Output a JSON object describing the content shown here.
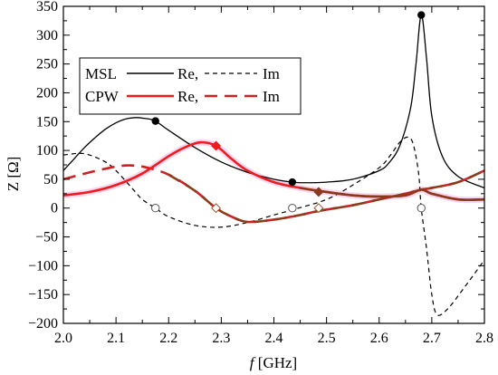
{
  "chart_data": {
    "type": "line",
    "xlabel_italic": "f",
    "xlabel_rest": " [GHz]",
    "ylabel": "Z [Ω]",
    "xlim": [
      2.0,
      2.8
    ],
    "ylim": [
      -200,
      350
    ],
    "x_ticks": [
      2.0,
      2.1,
      2.2,
      2.3,
      2.4,
      2.5,
      2.6,
      2.7,
      2.8
    ],
    "x_tick_labels": [
      "2.0",
      "2.1",
      "2.2",
      "2.3",
      "2.4",
      "2.5",
      "2.6",
      "2.7",
      "2.8"
    ],
    "y_ticks": [
      -200,
      -150,
      -100,
      -50,
      0,
      50,
      100,
      150,
      200,
      250,
      300,
      350
    ],
    "y_tick_labels": [
      "−200",
      "−150",
      "−100",
      "−50",
      "0",
      "50",
      "100",
      "150",
      "200",
      "250",
      "300",
      "350"
    ],
    "grid": false,
    "legend_placement": "top-left",
    "legend": {
      "rows": [
        {
          "name": "MSL",
          "re": "Re,",
          "im": "Im"
        },
        {
          "name": "CPW",
          "re": "Re,",
          "im": "Im"
        }
      ]
    },
    "colors": {
      "msl": "#000000",
      "cpw_re": "#ee1c1c",
      "cpw_im": "#cc2222",
      "brown": "#8b3a1a",
      "pink_band": "#f4b6e6"
    },
    "series": [
      {
        "name": "MSL Re",
        "x": [
          2.0,
          2.02,
          2.04,
          2.06,
          2.08,
          2.1,
          2.12,
          2.14,
          2.15,
          2.16,
          2.175,
          2.2,
          2.25,
          2.3,
          2.35,
          2.4,
          2.435,
          2.46,
          2.5,
          2.55,
          2.6,
          2.62,
          2.64,
          2.66,
          2.67,
          2.68,
          2.69,
          2.7,
          2.72,
          2.75,
          2.8
        ],
        "y": [
          65,
          85,
          105,
          122,
          137,
          148,
          155,
          157,
          156,
          155,
          151,
          135,
          105,
          80,
          62,
          50,
          45,
          44,
          45,
          50,
          65,
          80,
          110,
          175,
          250,
          335,
          260,
          160,
          90,
          55,
          35
        ]
      },
      {
        "name": "MSL Im",
        "x": [
          2.0,
          2.03,
          2.05,
          2.08,
          2.1,
          2.13,
          2.15,
          2.175,
          2.2,
          2.25,
          2.3,
          2.35,
          2.4,
          2.435,
          2.5,
          2.55,
          2.6,
          2.62,
          2.64,
          2.655,
          2.665,
          2.675,
          2.68,
          2.69,
          2.7,
          2.71,
          2.73,
          2.76,
          2.8
        ],
        "y": [
          92,
          95,
          92,
          80,
          65,
          35,
          15,
          0,
          -15,
          -30,
          -33,
          -25,
          -12,
          -3,
          15,
          40,
          70,
          90,
          115,
          123,
          110,
          60,
          0,
          -70,
          -150,
          -185,
          -175,
          -140,
          -90
        ]
      },
      {
        "name": "CPW Re",
        "x": [
          2.0,
          2.05,
          2.1,
          2.15,
          2.2,
          2.23,
          2.26,
          2.29,
          2.32,
          2.35,
          2.4,
          2.45,
          2.485,
          2.55,
          2.6,
          2.65,
          2.68,
          2.7,
          2.75,
          2.8
        ],
        "y": [
          22,
          28,
          40,
          60,
          90,
          105,
          114,
          108,
          85,
          65,
          45,
          35,
          30,
          22,
          20,
          22,
          32,
          25,
          15,
          15
        ]
      },
      {
        "name": "CPW Im",
        "x": [
          2.0,
          2.05,
          2.1,
          2.13,
          2.16,
          2.2,
          2.25,
          2.29,
          2.32,
          2.35,
          2.4,
          2.45,
          2.485,
          2.55,
          2.6,
          2.65,
          2.68,
          2.7,
          2.75,
          2.8
        ],
        "y": [
          50,
          62,
          72,
          74,
          70,
          58,
          30,
          0,
          -15,
          -24,
          -20,
          -12,
          -5,
          5,
          15,
          25,
          32,
          35,
          45,
          65
        ]
      }
    ],
    "markers": {
      "filled_black": [
        [
          2.175,
          151
        ],
        [
          2.435,
          45
        ],
        [
          2.68,
          335
        ]
      ],
      "open_circle": [
        [
          2.175,
          0
        ],
        [
          2.435,
          0
        ],
        [
          2.68,
          0
        ]
      ],
      "filled_red_diamond": [
        [
          2.29,
          108
        ]
      ],
      "filled_brown_diamond": [
        [
          2.485,
          28
        ]
      ],
      "open_diamond": [
        [
          2.29,
          0
        ],
        [
          2.485,
          0
        ]
      ]
    }
  }
}
